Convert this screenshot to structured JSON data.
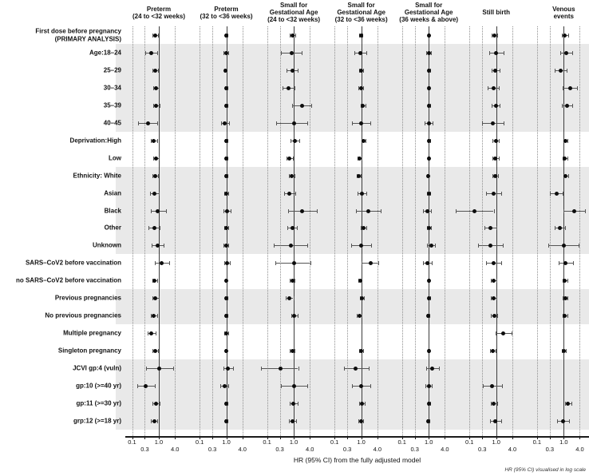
{
  "chart_data": {
    "type": "forest",
    "scale": "log",
    "xlabel": "HR (95% CI) from the fully adjusted model",
    "footnote": "HR (95% CI) visualised in log scale",
    "ticks": [
      0.1,
      0.3,
      1.0,
      4.0
    ],
    "tick_labels": [
      "0.1",
      "0.3",
      "1.0",
      "4.0"
    ],
    "reference_value": 1.0,
    "shaded_groups": [
      [
        1,
        5
      ],
      [
        8,
        12
      ],
      [
        15,
        16
      ],
      [
        19,
        22
      ]
    ],
    "rows": [
      "First dose before pregnancy\n(PRIMARY ANALYSIS)",
      "Age:18–24",
      "25–29",
      "30–34",
      "35–39",
      "40–45",
      "Deprivation:High",
      "Low",
      "Ethnicity: White",
      "Asian",
      "Black",
      "Other",
      "Unknown",
      "SARS–CoV2 before vaccination",
      "no SARS–CoV2 before vaccination",
      "Previous pregnancies",
      "No previous pregnancies",
      "Multiple pregnancy",
      "Singleton pregnancy",
      "JCVI gp:4 (vuln)",
      "gp:10 (>=40 yr)",
      "gp:11 (>=30 yr)",
      "grp:12 (>=18 yr)"
    ],
    "panels": [
      {
        "title": [
          "Preterm",
          "(24 to <32 weeks)"
        ],
        "estimates": [
          [
            0.73,
            0.58,
            0.92
          ],
          [
            0.51,
            0.32,
            0.89
          ],
          [
            0.74,
            0.58,
            0.95
          ],
          [
            0.79,
            0.62,
            1.0
          ],
          [
            0.81,
            0.62,
            1.06
          ],
          [
            0.4,
            0.17,
            0.85
          ],
          [
            0.65,
            0.5,
            0.85
          ],
          [
            0.77,
            0.6,
            0.99
          ],
          [
            0.72,
            0.57,
            0.92
          ],
          [
            0.68,
            0.46,
            1.0
          ],
          [
            0.91,
            0.5,
            1.9
          ],
          [
            0.68,
            0.42,
            1.1
          ],
          [
            0.91,
            0.55,
            1.5
          ],
          [
            1.28,
            0.72,
            2.4
          ],
          [
            0.7,
            0.56,
            0.88
          ],
          [
            0.74,
            0.56,
            0.97
          ],
          [
            0.66,
            0.5,
            0.87
          ],
          [
            0.53,
            0.38,
            0.75
          ],
          [
            0.74,
            0.59,
            0.93
          ],
          [
            1.07,
            0.33,
            3.4
          ],
          [
            0.33,
            0.16,
            0.7
          ],
          [
            0.81,
            0.59,
            1.1
          ],
          [
            0.68,
            0.51,
            0.9
          ]
        ]
      },
      {
        "title": [
          "Preterm",
          "(32 to <36 weeks)"
        ],
        "estimates": [
          [
            0.98,
            0.88,
            1.09
          ],
          [
            0.98,
            0.8,
            1.2
          ],
          [
            0.95,
            0.85,
            1.06
          ],
          [
            1.0,
            0.9,
            1.11
          ],
          [
            1.0,
            0.89,
            1.12
          ],
          [
            0.89,
            0.62,
            1.28
          ],
          [
            0.97,
            0.87,
            1.08
          ],
          [
            0.99,
            0.89,
            1.1
          ],
          [
            0.97,
            0.88,
            1.07
          ],
          [
            1.0,
            0.85,
            1.18
          ],
          [
            1.07,
            0.8,
            1.43
          ],
          [
            1.0,
            0.82,
            1.22
          ],
          [
            0.97,
            0.78,
            1.21
          ],
          [
            1.07,
            0.82,
            1.4
          ],
          [
            0.97,
            0.89,
            1.06
          ],
          [
            1.0,
            0.91,
            1.1
          ],
          [
            0.97,
            0.88,
            1.07
          ],
          [
            1.02,
            0.86,
            1.21
          ],
          [
            0.97,
            0.89,
            1.06
          ],
          [
            1.17,
            0.78,
            1.76
          ],
          [
            0.85,
            0.6,
            1.2
          ],
          [
            1.0,
            0.9,
            1.11
          ],
          [
            0.97,
            0.87,
            1.08
          ]
        ]
      },
      {
        "title": [
          "Small for",
          "Gestational Age",
          "(24 to <32 weeks)"
        ],
        "estimates": [
          [
            0.9,
            0.72,
            1.13
          ],
          [
            0.81,
            0.34,
            1.93
          ],
          [
            0.87,
            0.55,
            1.38
          ],
          [
            0.63,
            0.37,
            1.07
          ],
          [
            2.0,
            0.88,
            4.5
          ],
          [
            1.0,
            0.22,
            3.3
          ],
          [
            1.12,
            0.76,
            1.65
          ],
          [
            0.7,
            0.54,
            0.91
          ],
          [
            0.83,
            0.65,
            1.06
          ],
          [
            0.69,
            0.43,
            1.11
          ],
          [
            2.1,
            0.62,
            7.1
          ],
          [
            0.87,
            0.59,
            1.28
          ],
          [
            0.77,
            0.18,
            3.3
          ],
          [
            1.0,
            0.2,
            4.2
          ],
          [
            0.87,
            0.7,
            1.08
          ],
          [
            0.7,
            0.51,
            0.96
          ],
          [
            1.05,
            0.81,
            1.36
          ],
          null,
          [
            0.87,
            0.7,
            1.1
          ],
          [
            0.33,
            0.06,
            1.45
          ],
          [
            1.04,
            0.33,
            3.3
          ],
          [
            0.98,
            0.7,
            1.37
          ],
          [
            0.89,
            0.65,
            1.22
          ]
        ]
      },
      {
        "title": [
          "Small for",
          "Gestational Age",
          "(32 to <36 weeks)"
        ],
        "estimates": [
          [
            0.97,
            0.85,
            1.11
          ],
          [
            0.93,
            0.56,
            1.55
          ],
          [
            0.99,
            0.81,
            1.21
          ],
          [
            0.96,
            0.78,
            1.18
          ],
          [
            1.17,
            0.94,
            1.46
          ],
          [
            0.99,
            0.45,
            2.18
          ],
          [
            1.22,
            1.0,
            1.49
          ],
          [
            0.87,
            0.72,
            1.05
          ],
          [
            0.82,
            0.69,
            0.97
          ],
          [
            1.07,
            0.72,
            1.59
          ],
          [
            1.8,
            0.62,
            5.2
          ],
          [
            1.22,
            0.97,
            1.53
          ],
          [
            1.0,
            0.43,
            2.33
          ],
          [
            2.2,
            1.05,
            4.4
          ],
          [
            0.9,
            0.77,
            1.05
          ],
          [
            1.07,
            0.88,
            1.3
          ],
          [
            0.84,
            0.7,
            1.01
          ],
          null,
          [
            0.97,
            0.82,
            1.15
          ],
          [
            0.6,
            0.22,
            1.85
          ],
          [
            0.98,
            0.44,
            2.18
          ],
          [
            1.07,
            0.85,
            1.35
          ],
          [
            0.97,
            0.78,
            1.21
          ]
        ]
      },
      {
        "title": [
          "Small for",
          "Gestational Age",
          "(36 weeks & above)"
        ],
        "estimates": [
          [
            1.0,
            0.93,
            1.08
          ],
          [
            0.99,
            0.82,
            1.2
          ],
          [
            1.0,
            0.91,
            1.1
          ],
          [
            0.99,
            0.9,
            1.09
          ],
          [
            1.02,
            0.91,
            1.14
          ],
          [
            0.99,
            0.72,
            1.36
          ],
          [
            1.01,
            0.92,
            1.11
          ],
          [
            0.99,
            0.9,
            1.09
          ],
          [
            0.93,
            0.85,
            1.02
          ],
          [
            1.0,
            0.87,
            1.15
          ],
          [
            0.88,
            0.62,
            1.25
          ],
          [
            1.0,
            0.85,
            1.18
          ],
          [
            1.22,
            0.88,
            1.69
          ],
          [
            0.91,
            0.63,
            1.31
          ],
          [
            1.0,
            0.93,
            1.08
          ],
          [
            1.0,
            0.9,
            1.11
          ],
          [
            0.95,
            0.87,
            1.04
          ],
          null,
          [
            1.0,
            0.93,
            1.08
          ],
          [
            1.37,
            0.8,
            2.35
          ],
          [
            1.0,
            0.75,
            1.33
          ],
          [
            1.0,
            0.9,
            1.12
          ],
          [
            0.95,
            0.85,
            1.07
          ]
        ]
      },
      {
        "title": [
          "Still birth"
        ],
        "estimates": [
          [
            0.86,
            0.68,
            1.09
          ],
          [
            1.0,
            0.55,
            1.84
          ],
          [
            0.94,
            0.68,
            1.3
          ],
          [
            0.78,
            0.48,
            1.26
          ],
          [
            0.95,
            0.68,
            1.33
          ],
          [
            0.75,
            0.29,
            1.92
          ],
          [
            0.95,
            0.73,
            1.24
          ],
          [
            0.94,
            0.7,
            1.26
          ],
          [
            0.94,
            0.74,
            1.2
          ],
          [
            0.8,
            0.42,
            1.52
          ],
          [
            0.15,
            0.03,
            0.8
          ],
          [
            0.61,
            0.36,
            1.05
          ],
          [
            0.61,
            0.21,
            1.76
          ],
          [
            0.8,
            0.43,
            1.5
          ],
          [
            0.82,
            0.65,
            1.03
          ],
          [
            0.8,
            0.63,
            1.02
          ],
          [
            0.83,
            0.65,
            1.06
          ],
          [
            1.88,
            0.92,
            3.85
          ],
          [
            0.75,
            0.6,
            0.94
          ],
          null,
          [
            0.71,
            0.31,
            1.65
          ],
          [
            0.82,
            0.62,
            1.08
          ],
          [
            0.94,
            0.58,
            1.52
          ]
        ]
      },
      {
        "title": [
          "Venous",
          "events"
        ],
        "estimates": [
          [
            1.12,
            0.88,
            1.43
          ],
          [
            1.26,
            0.74,
            2.15
          ],
          [
            0.75,
            0.45,
            1.25
          ],
          [
            1.72,
            0.93,
            3.18
          ],
          [
            1.31,
            0.83,
            2.07
          ],
          null,
          [
            1.18,
            0.98,
            1.42
          ],
          [
            1.12,
            0.9,
            1.39
          ],
          [
            1.2,
            0.96,
            1.5
          ],
          [
            0.53,
            0.31,
            0.9
          ],
          [
            2.48,
            0.95,
            6.45
          ],
          [
            0.71,
            0.45,
            1.12
          ],
          [
            1.0,
            0.27,
            3.65
          ],
          [
            1.18,
            0.64,
            2.18
          ],
          [
            1.12,
            0.92,
            1.37
          ],
          [
            1.15,
            0.94,
            1.4
          ],
          [
            1.1,
            0.9,
            1.35
          ],
          null,
          [
            1.0,
            0.85,
            1.18
          ],
          null,
          null,
          [
            1.45,
            1.1,
            1.92
          ],
          [
            0.92,
            0.55,
            1.55
          ]
        ]
      }
    ]
  }
}
